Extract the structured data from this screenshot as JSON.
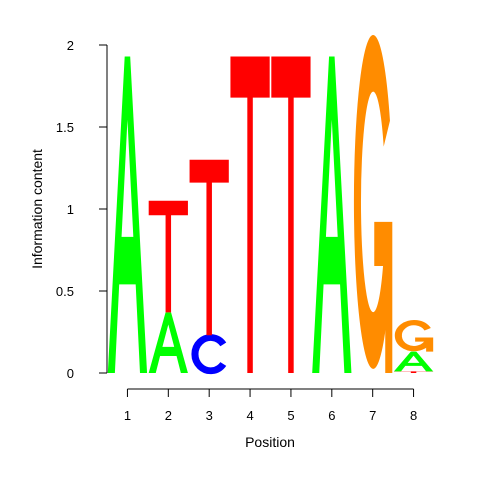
{
  "chart_data": {
    "type": "sequence-logo",
    "xlabel": "Position",
    "ylabel": "Information content",
    "ylim": [
      0,
      2
    ],
    "yticks": [
      "0",
      "0.5",
      "1",
      "1.5",
      "2"
    ],
    "xticks": [
      "1",
      "2",
      "3",
      "4",
      "5",
      "6",
      "7",
      "8"
    ],
    "colors": {
      "A": "#00ff00",
      "C": "#0000ff",
      "G": "#ff8c00",
      "T": "#ff0000"
    },
    "positions": [
      {
        "position": "1",
        "letters": [
          {
            "letter": "A",
            "height": 1.93
          }
        ]
      },
      {
        "position": "2",
        "letters": [
          {
            "letter": "A",
            "height": 0.37
          },
          {
            "letter": "T",
            "height": 0.68
          }
        ]
      },
      {
        "position": "3",
        "letters": [
          {
            "letter": "C",
            "height": 0.23
          },
          {
            "letter": "T",
            "height": 1.07
          }
        ]
      },
      {
        "position": "4",
        "letters": [
          {
            "letter": "T",
            "height": 1.93
          }
        ]
      },
      {
        "position": "5",
        "letters": [
          {
            "letter": "T",
            "height": 1.93
          }
        ]
      },
      {
        "position": "6",
        "letters": [
          {
            "letter": "A",
            "height": 1.93
          }
        ]
      },
      {
        "position": "7",
        "letters": [
          {
            "letter": "G",
            "height": 1.92
          }
        ]
      },
      {
        "position": "8",
        "letters": [
          {
            "letter": "T",
            "height": 0.01
          },
          {
            "letter": "A",
            "height": 0.12
          },
          {
            "letter": "G",
            "height": 0.18
          }
        ]
      }
    ]
  }
}
